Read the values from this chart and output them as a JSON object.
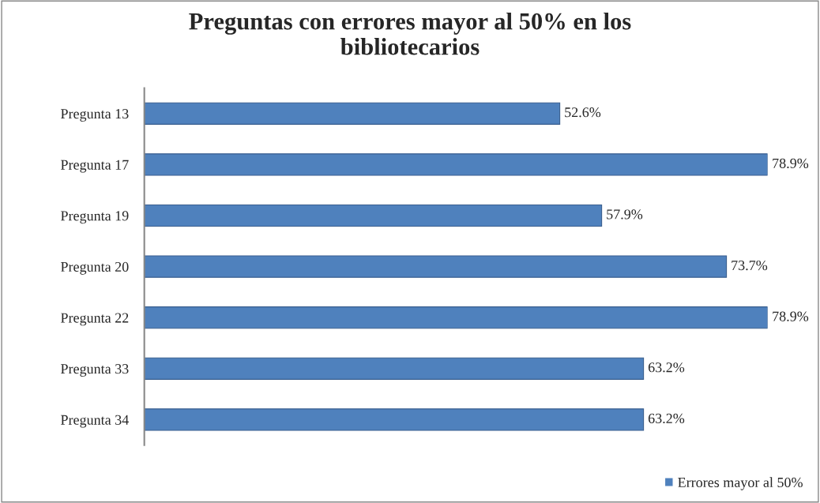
{
  "chart_data": {
    "type": "bar",
    "orientation": "horizontal",
    "title": "Preguntas con errores mayor al 50% en los\nbibliotecarios",
    "categories": [
      "Pregunta 13",
      "Pregunta 17",
      "Pregunta 19",
      "Pregunta 20",
      "Pregunta 22",
      "Pregunta 33",
      "Pregunta 34"
    ],
    "series": [
      {
        "name": "Errores mayor al 50%",
        "color": "#4f81bd",
        "values": [
          52.6,
          78.9,
          57.9,
          73.7,
          78.9,
          63.2,
          63.2
        ],
        "value_labels": [
          "52.6%",
          "78.9%",
          "57.9%",
          "73.7%",
          "78.9%",
          "63.2%",
          "63.2%"
        ]
      }
    ],
    "tick_labels": "y",
    "grid": false,
    "legend": "bottom right"
  }
}
